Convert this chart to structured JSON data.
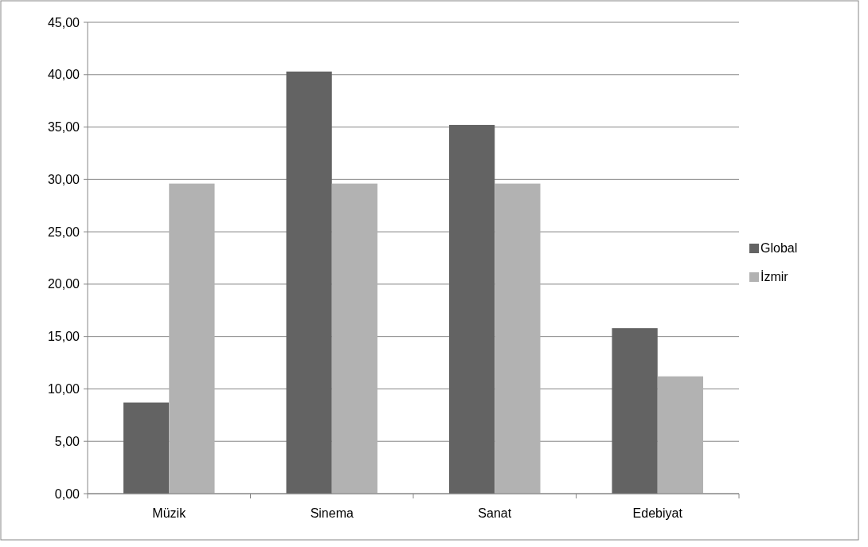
{
  "chart_data": {
    "type": "bar",
    "categories": [
      "Müzik",
      "Sinema",
      "Sanat",
      "Edebiyat"
    ],
    "series": [
      {
        "name": "Global",
        "color": "#636363",
        "values": [
          8.7,
          40.3,
          35.2,
          15.8
        ]
      },
      {
        "name": "İzmir",
        "color": "#b2b2b2",
        "values": [
          29.6,
          29.6,
          29.6,
          11.2
        ]
      }
    ],
    "ylim": [
      0,
      45
    ],
    "yticks": [
      {
        "value": 0,
        "label": "0,00"
      },
      {
        "value": 5,
        "label": "5,00"
      },
      {
        "value": 10,
        "label": "10,00"
      },
      {
        "value": 15,
        "label": "15,00"
      },
      {
        "value": 20,
        "label": "20,00"
      },
      {
        "value": 25,
        "label": "25,00"
      },
      {
        "value": 30,
        "label": "30,00"
      },
      {
        "value": 35,
        "label": "35,00"
      },
      {
        "value": 40,
        "label": "40,00"
      },
      {
        "value": 45,
        "label": "45,00"
      }
    ],
    "grid": "y",
    "legend": "right"
  }
}
